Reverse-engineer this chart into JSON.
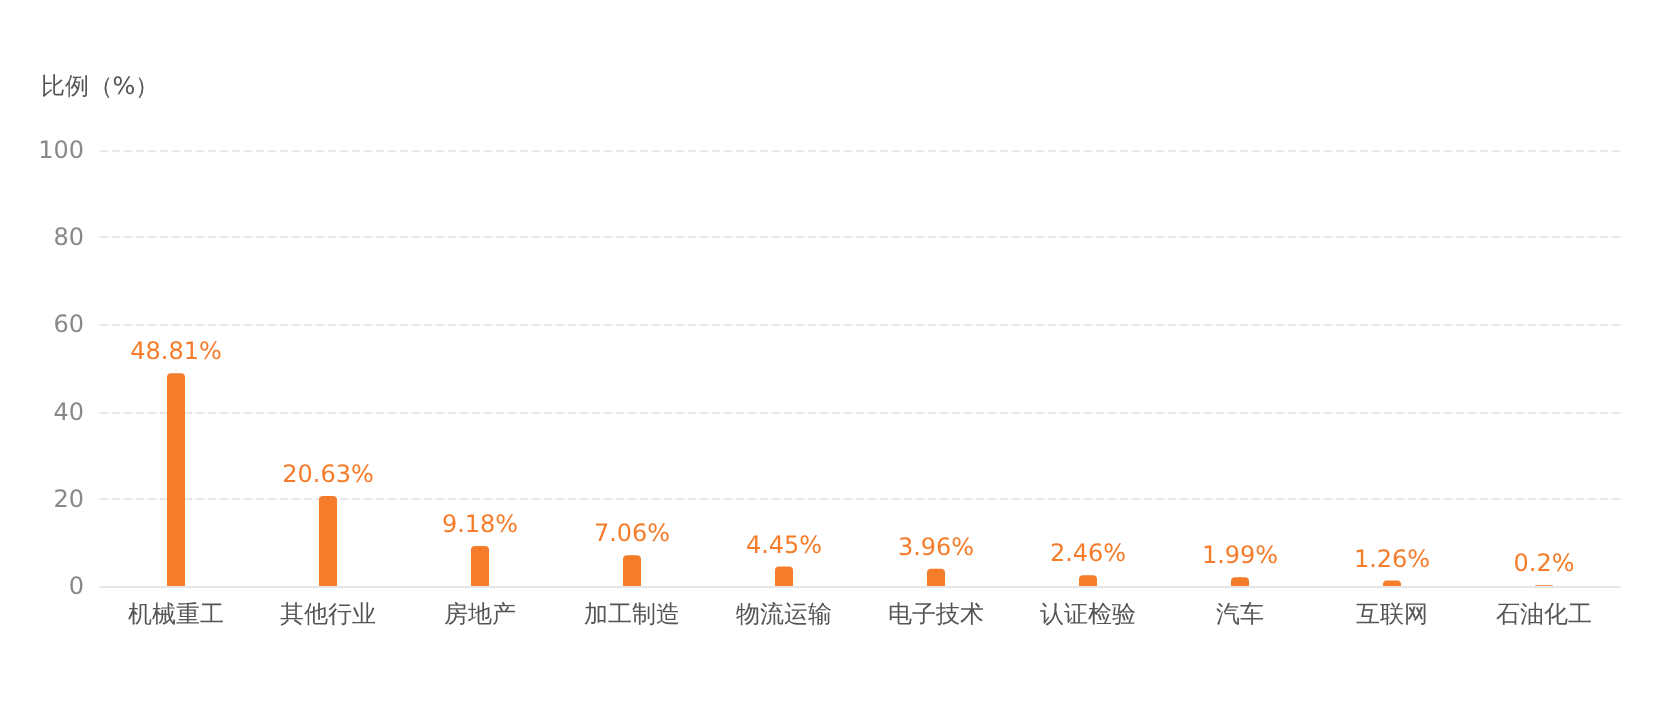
{
  "chart_data": {
    "type": "bar",
    "ylabel": "比例（%）",
    "categories": [
      "机械重工",
      "其他行业",
      "房地产",
      "加工制造",
      "物流运输",
      "电子技术",
      "认证检验",
      "汽车",
      "互联网",
      "石油化工"
    ],
    "values": [
      48.81,
      20.63,
      9.18,
      7.06,
      4.45,
      3.96,
      2.46,
      1.99,
      1.26,
      0.2
    ],
    "value_labels": [
      "48.81%",
      "20.63%",
      "9.18%",
      "7.06%",
      "4.45%",
      "3.96%",
      "2.46%",
      "1.99%",
      "1.26%",
      "0.2%"
    ],
    "color": "#f57c2a",
    "ylim": [
      0,
      100
    ],
    "yticks": [
      0,
      20,
      40,
      60,
      80,
      100
    ],
    "grid": "y"
  }
}
